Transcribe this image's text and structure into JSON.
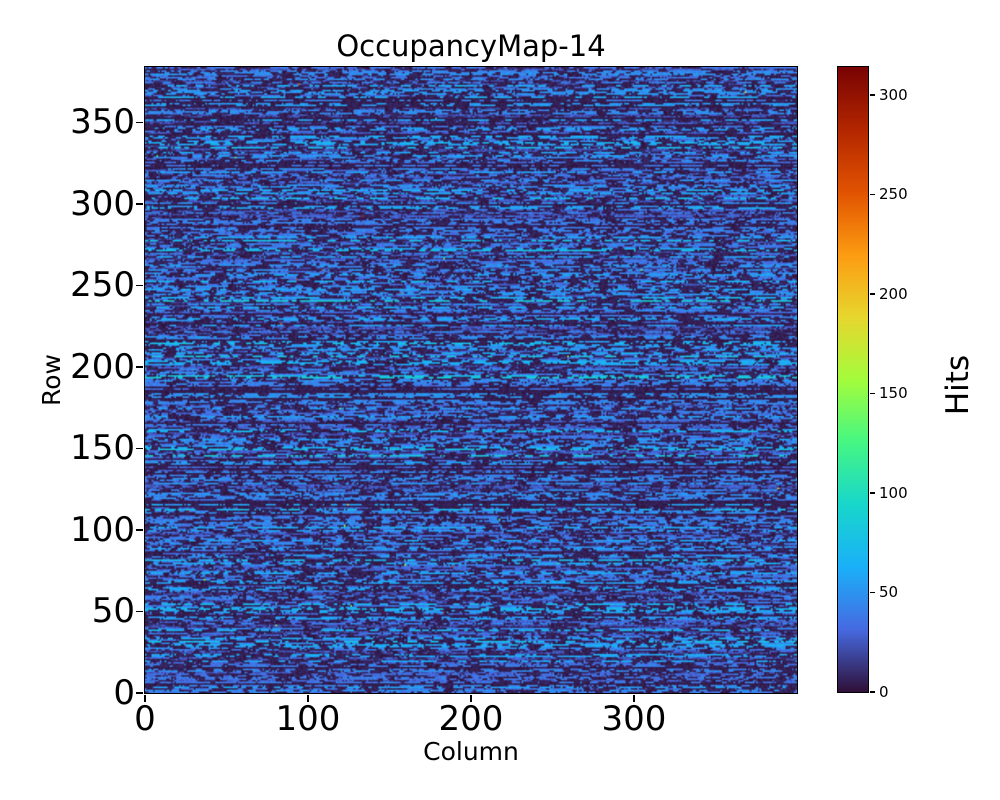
{
  "chart_data": {
    "type": "heatmap",
    "title": "OccupancyMap-14",
    "xlabel": "Column",
    "ylabel": "Row",
    "colorbar_label": "Hits",
    "x_range": [
      0,
      400
    ],
    "y_range": [
      0,
      384
    ],
    "value_range": [
      0,
      314
    ],
    "x_ticks": [
      0,
      100,
      200,
      300
    ],
    "y_ticks": [
      0,
      50,
      100,
      150,
      200,
      250,
      300,
      350
    ],
    "colorbar_ticks": [
      0,
      50,
      100,
      150,
      200,
      250,
      300
    ],
    "grid": false,
    "legend": null,
    "colormap": {
      "name": "turbo",
      "stops": [
        [
          48,
          18,
          59
        ],
        [
          70,
          107,
          227
        ],
        [
          26,
          177,
          249
        ],
        [
          24,
          215,
          203
        ],
        [
          70,
          247,
          131
        ],
        [
          164,
          252,
          60
        ],
        [
          231,
          215,
          46
        ],
        [
          253,
          156,
          18
        ],
        [
          226,
          84,
          1
        ],
        [
          180,
          39,
          0
        ],
        [
          122,
          4,
          3
        ]
      ]
    },
    "pattern": {
      "description": "400x384 pixel occupancy map: nearly every row carries random horizontal dashed streaks of low hit counts (~20-85 hits, rendered blue) over a near-zero dark background, with rare isolated hot pixels up to 314 hits",
      "seed": 1414,
      "empty_row_fraction": 0.08,
      "dash_value_range": [
        20,
        88
      ],
      "background_value_range": [
        0,
        10
      ],
      "hot_pixel_count": 34,
      "hot_pixel_value_range": [
        95,
        314
      ]
    }
  }
}
